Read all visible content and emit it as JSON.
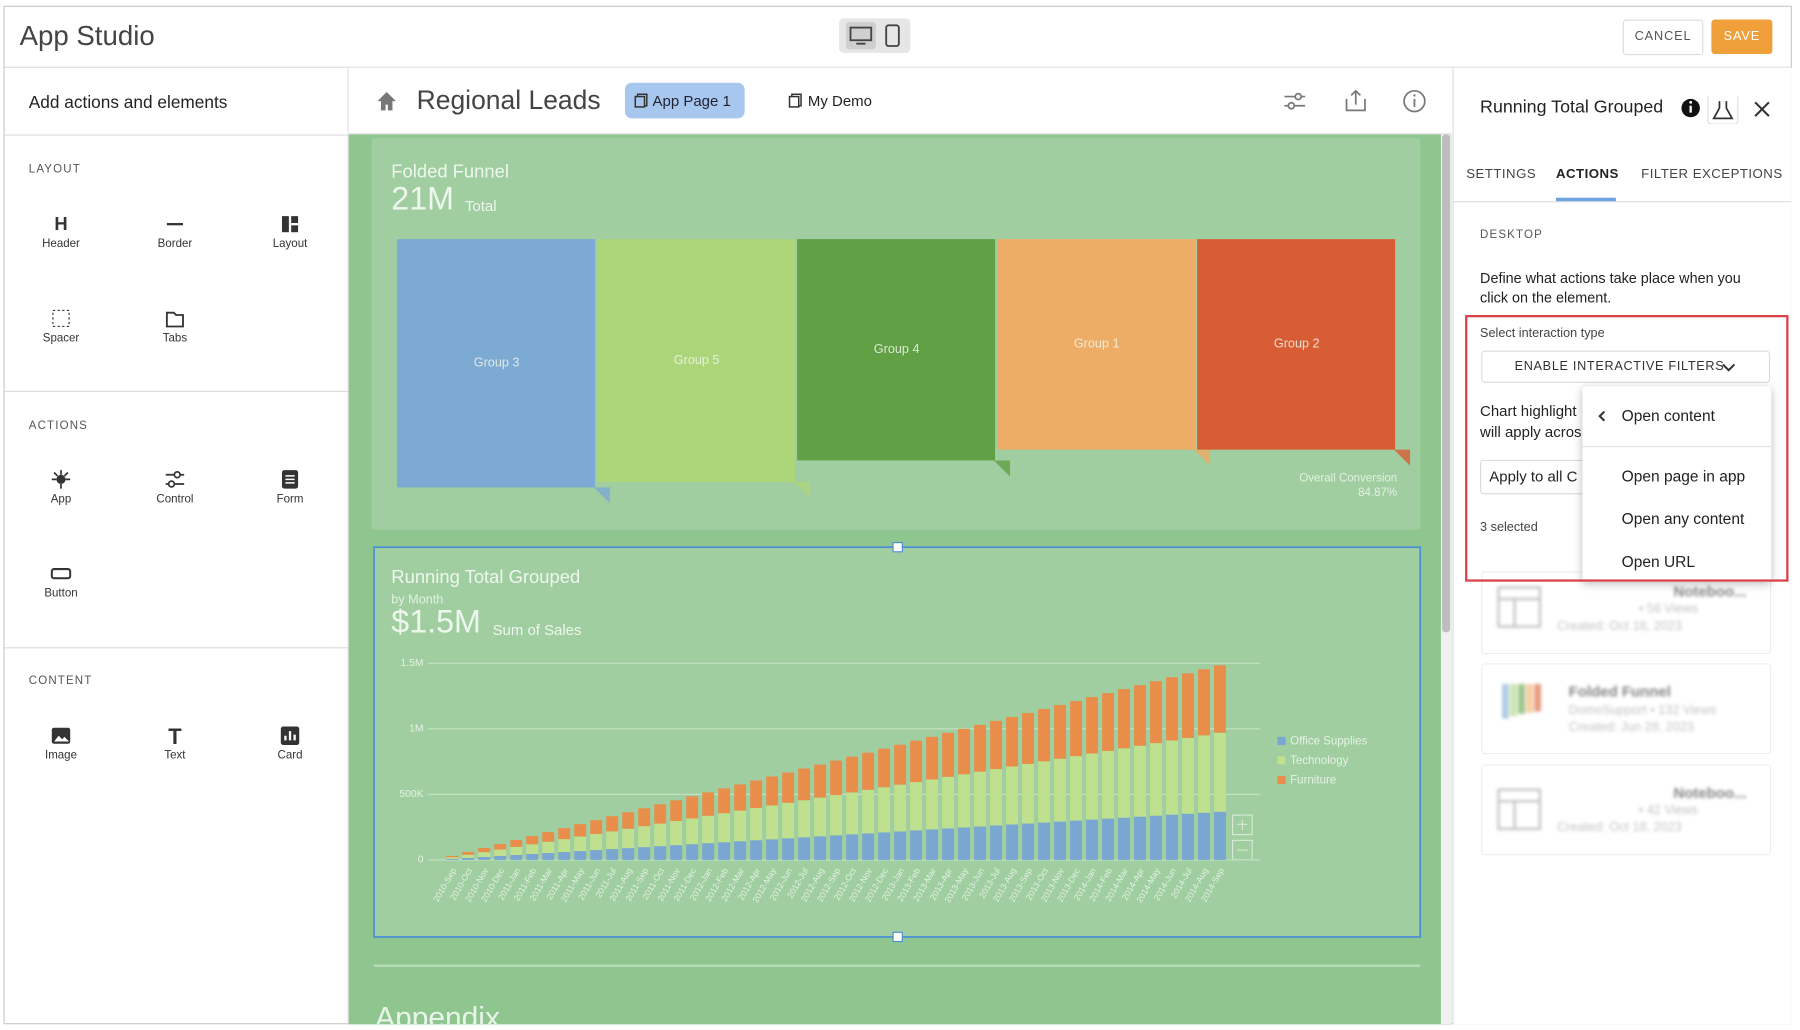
{
  "app_header": {
    "title": "App Studio",
    "cancel": "CANCEL",
    "save": "SAVE"
  },
  "left_panel": {
    "title": "Add actions and elements",
    "sections": [
      {
        "heading": "LAYOUT",
        "items": [
          "Header",
          "Border",
          "Layout",
          "Spacer",
          "Tabs"
        ]
      },
      {
        "heading": "ACTIONS",
        "items": [
          "App",
          "Control",
          "Form",
          "Button"
        ]
      },
      {
        "heading": "CONTENT",
        "items": [
          "Image",
          "Text",
          "Card"
        ]
      }
    ]
  },
  "canvas_header": {
    "title": "Regional Leads",
    "tabs": [
      "App Page 1",
      "My Demo"
    ]
  },
  "funnel_card": {
    "title": "Folded Funnel",
    "total": "21M",
    "total_label": "Total",
    "groups": [
      "Group 3",
      "Group 5",
      "Group 4",
      "Group 1",
      "Group 2"
    ],
    "values": [
      4.6,
      4.5,
      4.1,
      3.9,
      3.9
    ],
    "colors": [
      "#7caad3",
      "#add57a",
      "#62a046",
      "#eead66",
      "#d85d35"
    ],
    "conversion_label": "Overall Conversion",
    "conversion": "84.87%"
  },
  "chart_data": {
    "type": "stacked_bar",
    "title": "Running Total Grouped",
    "subtitle": "by Month",
    "summary": "$1.5M",
    "summary_label": "Sum of Sales",
    "categories": [
      "2010-Sep",
      "2010-Oct",
      "2010-Nov",
      "2010-Dec",
      "2011-Jan",
      "2011-Feb",
      "2011-Mar",
      "2011-Apr",
      "2011-May",
      "2011-Jun",
      "2011-Jul",
      "2011-Aug",
      "2011-Sep",
      "2011-Oct",
      "2011-Nov",
      "2011-Dec",
      "2012-Jan",
      "2012-Feb",
      "2012-Mar",
      "2012-Apr",
      "2012-May",
      "2012-Jun",
      "2012-Jul",
      "2012-Aug",
      "2012-Sep",
      "2012-Oct",
      "2012-Nov",
      "2012-Dec",
      "2013-Jan",
      "2013-Feb",
      "2013-Mar",
      "2013-Apr",
      "2013-May",
      "2013-Jun",
      "2013-Jul",
      "2013-Aug",
      "2013-Sep",
      "2013-Oct",
      "2013-Nov",
      "2013-Dec",
      "2014-Jan",
      "2014-Feb",
      "2014-Mar",
      "2014-Apr",
      "2014-May",
      "2014-Jun",
      "2014-Jul",
      "2014-Aug",
      "2014-Sep"
    ],
    "series": [
      {
        "name": "Office Supplies",
        "color": "#7aa6d2",
        "values": [
          7500,
          15000,
          22500,
          30000,
          37500,
          45000,
          52500,
          60000,
          67500,
          75000,
          82500,
          90000,
          97500,
          105000,
          112500,
          120000,
          127500,
          135000,
          142500,
          150000,
          157500,
          165000,
          172500,
          180000,
          187500,
          195000,
          202500,
          210000,
          217500,
          225000,
          232500,
          240000,
          247500,
          255000,
          262500,
          270000,
          277500,
          285000,
          292500,
          300000,
          307500,
          315000,
          322500,
          330000,
          337500,
          345000,
          352500,
          360000,
          367500
        ]
      },
      {
        "name": "Technology",
        "color": "#bfe08e",
        "values": [
          12300,
          24600,
          36900,
          49200,
          61500,
          73800,
          86100,
          98400,
          110700,
          123000,
          135300,
          147600,
          159900,
          172200,
          184500,
          196800,
          209100,
          221400,
          233700,
          246000,
          258300,
          270600,
          282900,
          295200,
          307500,
          319800,
          332100,
          344400,
          356700,
          369000,
          381300,
          393600,
          405900,
          418200,
          430500,
          442800,
          455100,
          467400,
          479700,
          492000,
          504300,
          516600,
          528900,
          541200,
          553500,
          565800,
          578100,
          590400,
          602700
        ]
      },
      {
        "name": "Furniture",
        "color": "#e98d4a",
        "values": [
          10500,
          21000,
          31500,
          42000,
          52500,
          63000,
          73500,
          84000,
          94500,
          105000,
          115500,
          126000,
          136500,
          147000,
          157500,
          168000,
          178500,
          189000,
          199500,
          210000,
          220500,
          231000,
          241500,
          252000,
          262500,
          273000,
          283500,
          294000,
          304500,
          315000,
          325500,
          336000,
          346500,
          357000,
          367500,
          378000,
          388500,
          399000,
          409500,
          420000,
          430500,
          441000,
          451500,
          462000,
          472500,
          483000,
          493500,
          504000,
          514500
        ]
      }
    ],
    "ylim": [
      0,
      1500000
    ],
    "yticks": [
      0,
      {
        "value": 500000,
        "label": "500K"
      },
      {
        "value": 1000000,
        "label": "1M"
      },
      {
        "value": 1500000,
        "label": "1.5M"
      }
    ],
    "grid": true
  },
  "appendix": "Appendix",
  "right_panel": {
    "title": "Running Total Grouped",
    "tabs": [
      "SETTINGS",
      "ACTIONS",
      "FILTER EXCEPTIONS"
    ],
    "section": "DESKTOP",
    "description": [
      "Define what actions take place when you",
      "click on the element."
    ],
    "select_label": "Select interaction type",
    "dropdown": "ENABLE INTERACTIVE FILTERS",
    "hidden_text": [
      "Chart highlight",
      "will apply acros"
    ],
    "apply_button": "Apply to all C",
    "selected": "3 selected",
    "menu": {
      "back": "Open content",
      "items": [
        "Open page in app",
        "Open any content",
        "Open URL"
      ]
    },
    "cards": [
      {
        "title": "Noteboo...",
        "meta": "• 56 Views",
        "created": "Created: Oct 18, 2023"
      },
      {
        "title": "Folded Funnel",
        "meta": "DomoSupport • 132 Views",
        "created": "Created: Jun 28, 2023"
      },
      {
        "title": "Noteboo...",
        "meta": "• 42 Views",
        "created": "Created: Oct 18, 2023"
      }
    ]
  }
}
